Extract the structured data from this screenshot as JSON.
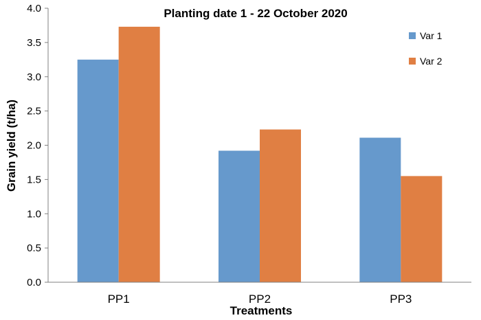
{
  "chart_data": {
    "type": "bar",
    "title": "Planting date 1 - 22 October 2020",
    "xlabel": "Treatments",
    "ylabel": "Grain yield (t/ha)",
    "categories": [
      "PP1",
      "PP2",
      "PP3"
    ],
    "series": [
      {
        "name": "Var 1",
        "color": "#6699cc",
        "values": [
          3.25,
          1.92,
          2.11
        ]
      },
      {
        "name": "Var 2",
        "color": "#e07f43",
        "values": [
          3.73,
          2.23,
          1.55
        ]
      }
    ],
    "ylim": [
      0,
      4.0
    ],
    "yticks": [
      "0.0",
      "0.5",
      "1.0",
      "1.5",
      "2.0",
      "2.5",
      "3.0",
      "3.5",
      "4.0"
    ],
    "grid": false,
    "legend_position": "top-right"
  }
}
